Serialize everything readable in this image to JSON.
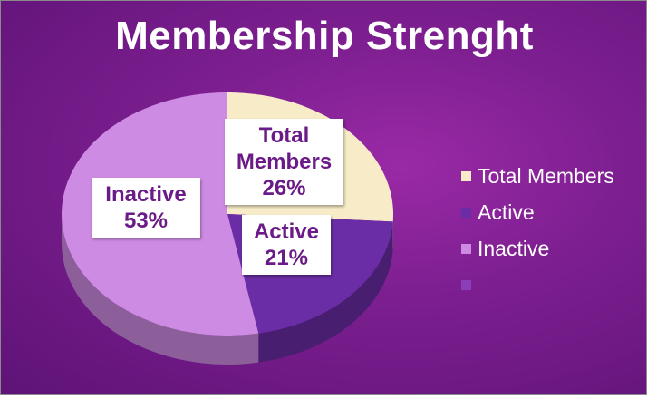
{
  "chart_data": {
    "type": "pie",
    "title": "Membership Strenght",
    "categories": [
      "Total Members",
      "Active",
      "Inactive",
      ""
    ],
    "values": [
      26,
      21,
      53,
      0
    ],
    "value_suffix": "%",
    "colors": [
      "#f8ecc8",
      "#6a2da5",
      "#ce8be3",
      "#8a3fb8"
    ],
    "legend_position": "right",
    "data_labels": [
      {
        "lines": [
          "Total",
          "Members",
          "26%"
        ]
      },
      {
        "lines": [
          "Active",
          "21%"
        ]
      },
      {
        "lines": [
          "Inactive",
          "53%"
        ]
      }
    ],
    "style": "3d-tilted"
  }
}
